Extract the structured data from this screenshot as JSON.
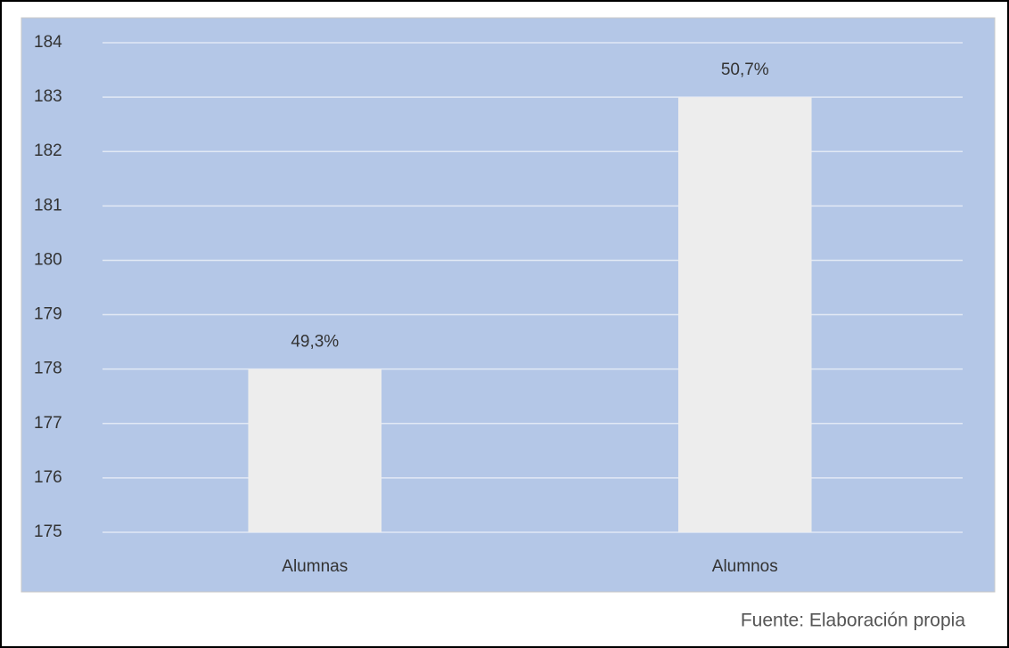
{
  "chart_data": {
    "type": "bar",
    "categories": [
      "Alumnas",
      "Alumnos"
    ],
    "values": [
      178,
      183
    ],
    "annotations": [
      "49,3%",
      "50,7%"
    ],
    "color": "#ededed",
    "ylim": [
      175,
      184
    ],
    "yticks": [
      175,
      176,
      177,
      178,
      179,
      180,
      181,
      182,
      183,
      184
    ],
    "grid": true,
    "source": "Fuente: Elaboración propia"
  }
}
